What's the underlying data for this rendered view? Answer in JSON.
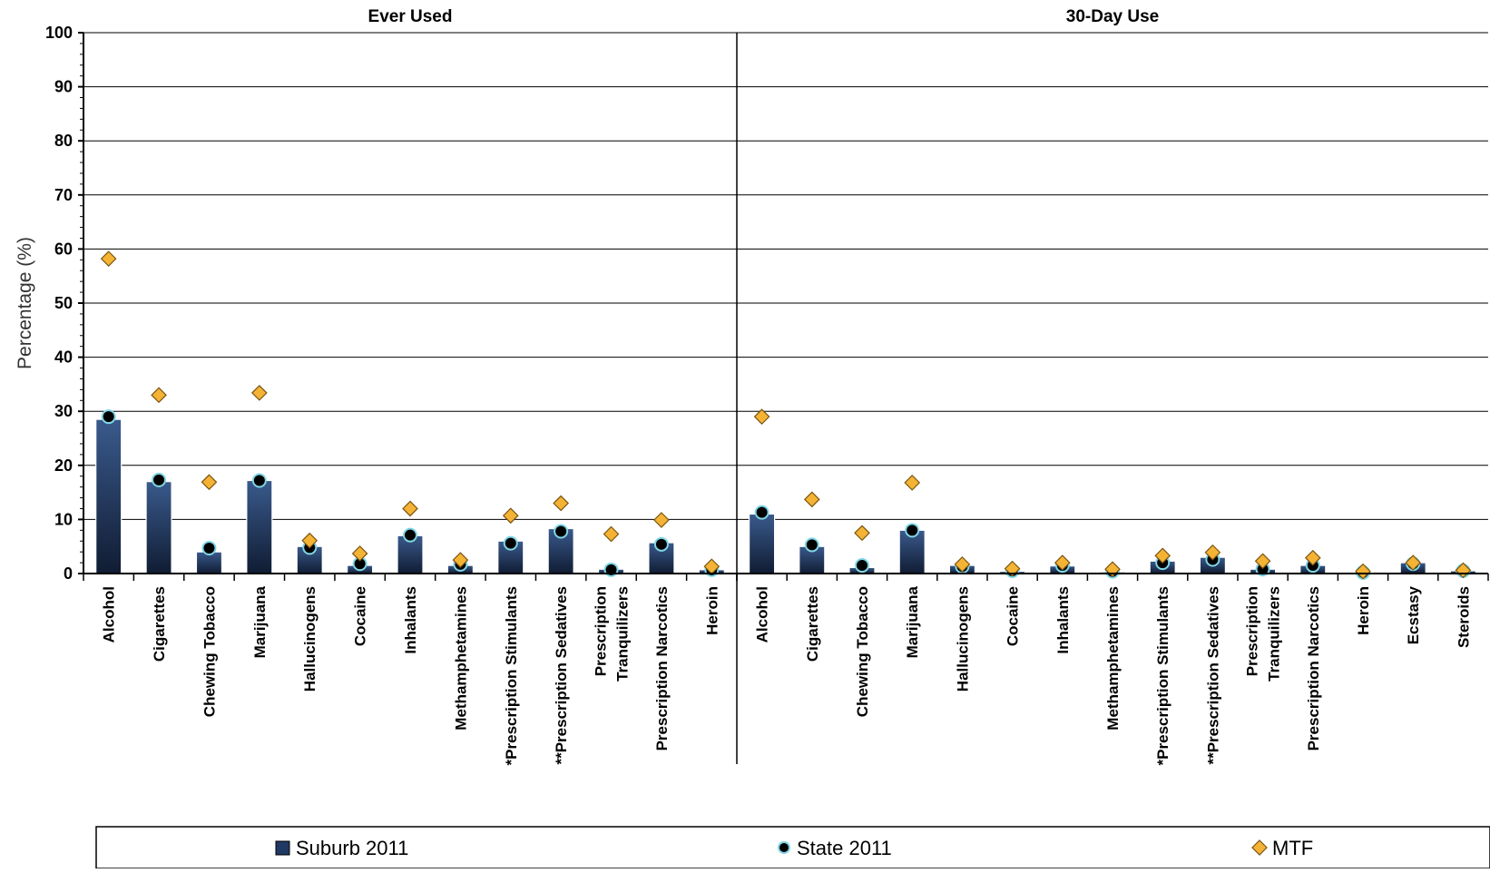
{
  "chart_data": {
    "type": "bar",
    "ylabel": "Percentage (%)",
    "ylim": [
      0,
      100
    ],
    "yticks": [
      0,
      10,
      20,
      30,
      40,
      50,
      60,
      70,
      80,
      90,
      100
    ],
    "grid": true,
    "legend_position": "bottom",
    "colors": {
      "suburb": "#1f3864",
      "suburb_light": "#3a5a8c",
      "state": "#000000",
      "state_edge": "#7fd6e6",
      "mtf": "#f5b335",
      "mtf_edge": "#7a5410"
    },
    "legend": [
      {
        "name": "Suburb 2011",
        "marker": "bar"
      },
      {
        "name": "State 2011",
        "marker": "circle"
      },
      {
        "name": "MTF",
        "marker": "diamond"
      }
    ],
    "panels": [
      {
        "title": "Ever Used",
        "categories": [
          [
            "Alcohol"
          ],
          [
            "Cigarettes"
          ],
          [
            "Chewing Tobacco"
          ],
          [
            "Marijuana"
          ],
          [
            "Hallucinogens"
          ],
          [
            "Cocaine"
          ],
          [
            "Inhalants"
          ],
          [
            "Methamphetamines"
          ],
          [
            "*Prescription Stimulants"
          ],
          [
            "**Prescription Sedatives"
          ],
          [
            "Prescription",
            "Tranquilizers"
          ],
          [
            "Prescription Narcotics"
          ],
          [
            "Heroin"
          ]
        ],
        "series": [
          {
            "name": "Suburb 2011",
            "values": [
              28.5,
              17.0,
              4.0,
              17.2,
              5.0,
              1.5,
              7.0,
              1.5,
              6.0,
              8.3,
              0.8,
              5.7,
              0.7
            ]
          },
          {
            "name": "State 2011",
            "values": [
              29.0,
              17.3,
              4.7,
              17.2,
              4.8,
              1.8,
              7.1,
              1.7,
              5.6,
              7.8,
              0.7,
              5.4,
              0.7
            ]
          },
          {
            "name": "MTF",
            "values": [
              58.2,
              33.0,
              16.9,
              33.4,
              6.1,
              3.7,
              12.0,
              2.5,
              10.7,
              13.0,
              7.3,
              9.9,
              1.3
            ]
          }
        ]
      },
      {
        "title": "30-Day Use",
        "categories": [
          [
            "Alcohol"
          ],
          [
            "Cigarettes"
          ],
          [
            "Chewing Tobacco"
          ],
          [
            "Marijuana"
          ],
          [
            "Hallucinogens"
          ],
          [
            "Cocaine"
          ],
          [
            "Inhalants"
          ],
          [
            "Methamphetamines"
          ],
          [
            "*Prescription Stimulants"
          ],
          [
            "**Prescription Sedatives"
          ],
          [
            "Prescription",
            "Tranquilizers"
          ],
          [
            "Prescription Narcotics"
          ],
          [
            "Heroin"
          ],
          [
            "Ecstasy"
          ],
          [
            "Steroids"
          ]
        ],
        "series": [
          {
            "name": "Suburb 2011",
            "values": [
              11.0,
              5.0,
              1.1,
              8.0,
              1.5,
              0.4,
              1.4,
              0.3,
              2.3,
              3.0,
              0.8,
              1.5,
              0.2,
              2.0,
              0.5
            ]
          },
          {
            "name": "State 2011",
            "values": [
              11.3,
              5.3,
              1.5,
              8.0,
              1.3,
              0.5,
              1.5,
              0.4,
              2.0,
              2.6,
              0.8,
              1.5,
              0.2,
              1.8,
              0.5
            ]
          },
          {
            "name": "MTF",
            "values": [
              29.0,
              13.7,
              7.5,
              16.8,
              1.7,
              0.9,
              2.0,
              0.8,
              3.3,
              3.9,
              2.3,
              2.9,
              0.4,
              2.0,
              0.6
            ]
          }
        ]
      }
    ]
  }
}
